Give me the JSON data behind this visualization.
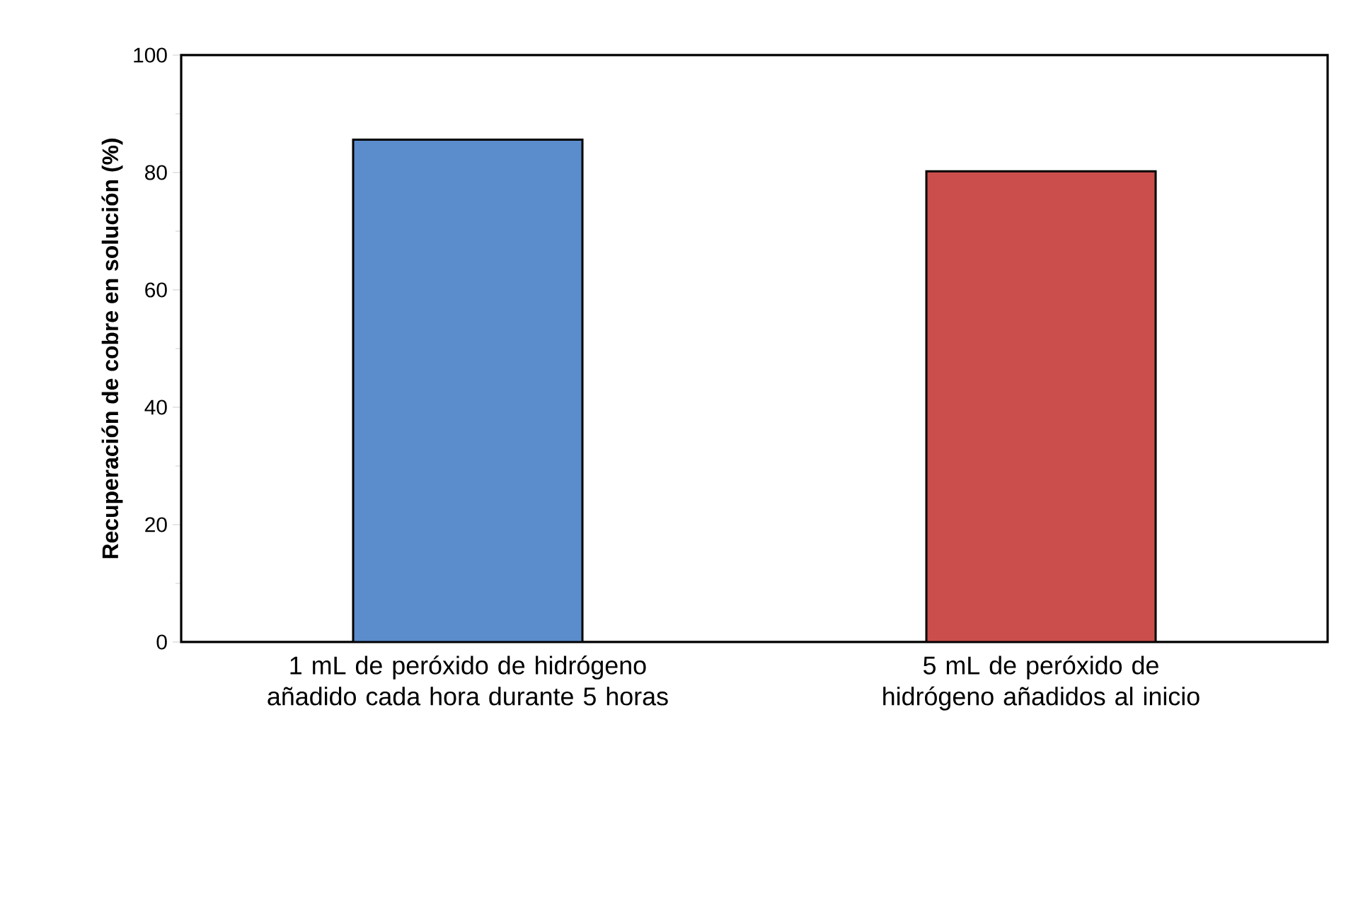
{
  "chart_data": {
    "type": "bar",
    "categories": [
      "1 mL de peróxido de hidrógeno añadido cada hora durante 5 horas",
      "5 mL de peróxido de hidrógeno añadidos al inicio"
    ],
    "values": [
      85.6,
      80.2
    ],
    "colors": [
      "#5b8ccb",
      "#cb4e4c"
    ],
    "ylabel": "Recuperación de cobre en solución (%)",
    "ylim": [
      0,
      100
    ],
    "yticks": [
      0,
      20,
      40,
      60,
      80,
      100
    ],
    "grid": false
  }
}
